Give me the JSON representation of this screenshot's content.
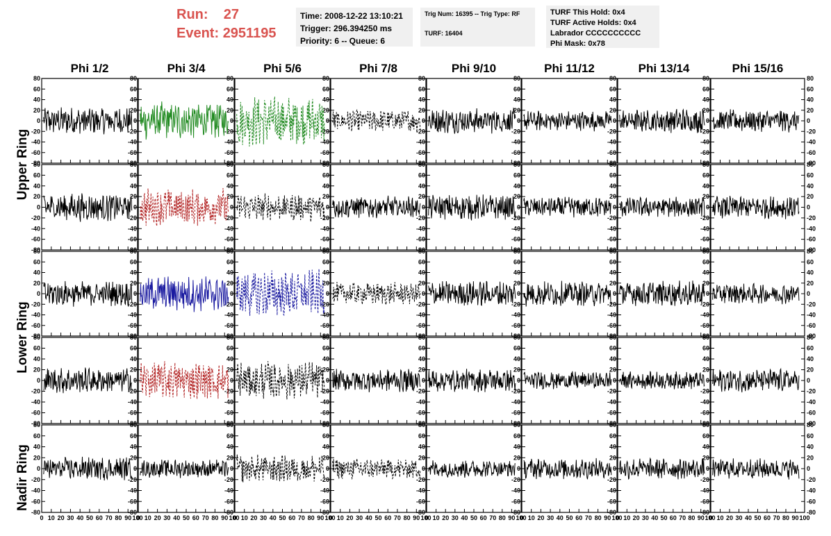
{
  "header": {
    "run_label": "Run:",
    "run_value": "27",
    "event_label": "Event:",
    "event_value": "2951195",
    "box1": [
      "Time: 2008-12-22 13:10:21",
      "Trigger: 296.394250 ms",
      "Priority: 6 -- Queue: 6"
    ],
    "box2": [
      "Trig Num: 16395 -- Trig Type: RF",
      "TURF: 16404"
    ],
    "box3": [
      "TURF This Hold: 0x4",
      "TURF Active Holds: 0x4",
      "Labrador CCCCCCCCCC",
      "Phi Mask: 0x78"
    ]
  },
  "chart_data": {
    "type": "line",
    "columns": [
      "Phi 1/2",
      "Phi 3/4",
      "Phi 5/6",
      "Phi 7/8",
      "Phi 9/10",
      "Phi 11/12",
      "Phi 13/14",
      "Phi 15/16"
    ],
    "ring_labels": [
      "Upper Ring",
      "Lower Ring",
      "Nadir Ring"
    ],
    "xlim": [
      0,
      100
    ],
    "ylim": [
      -80,
      80
    ],
    "x_ticks": [
      0,
      10,
      20,
      30,
      40,
      50,
      60,
      70,
      80,
      90,
      100
    ],
    "y_ticks": [
      -80,
      -60,
      -40,
      -20,
      0,
      20,
      40,
      60,
      80
    ],
    "rows": [
      {
        "ring": "Upper Ring",
        "amplitude": [
          22,
          30,
          40,
          18,
          20,
          16,
          20,
          18
        ],
        "color": [
          "#000000",
          "#228b22",
          "#228b22",
          "#000000",
          "#000000",
          "#000000",
          "#000000",
          "#000000"
        ],
        "dashed": [
          false,
          false,
          true,
          true,
          false,
          false,
          false,
          false
        ]
      },
      {
        "ring": "Upper Ring",
        "amplitude": [
          22,
          30,
          22,
          18,
          20,
          16,
          16,
          18
        ],
        "color": [
          "#000000",
          "#b22222",
          "#000000",
          "#000000",
          "#000000",
          "#000000",
          "#000000",
          "#000000"
        ],
        "dashed": [
          false,
          true,
          true,
          false,
          false,
          false,
          false,
          false
        ]
      },
      {
        "ring": "Lower Ring",
        "amplitude": [
          20,
          28,
          38,
          18,
          20,
          20,
          20,
          16
        ],
        "color": [
          "#000000",
          "#1a1aa0",
          "#1a1aa0",
          "#000000",
          "#000000",
          "#000000",
          "#000000",
          "#000000"
        ],
        "dashed": [
          false,
          false,
          true,
          true,
          false,
          false,
          false,
          false
        ]
      },
      {
        "ring": "Lower Ring",
        "amplitude": [
          20,
          30,
          30,
          18,
          18,
          14,
          14,
          18
        ],
        "color": [
          "#000000",
          "#b22222",
          "#000000",
          "#000000",
          "#000000",
          "#000000",
          "#000000",
          "#000000"
        ],
        "dashed": [
          false,
          true,
          true,
          false,
          false,
          false,
          false,
          false
        ]
      },
      {
        "ring": "Nadir Ring",
        "amplitude": [
          18,
          14,
          22,
          16,
          14,
          16,
          16,
          16
        ],
        "color": [
          "#000000",
          "#000000",
          "#000000",
          "#000000",
          "#000000",
          "#000000",
          "#000000",
          "#000000"
        ],
        "dashed": [
          false,
          false,
          true,
          true,
          false,
          false,
          false,
          false
        ]
      }
    ]
  }
}
